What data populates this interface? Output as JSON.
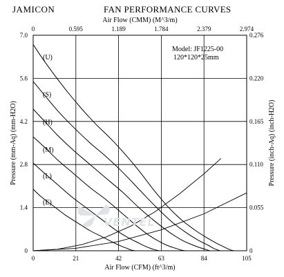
{
  "header": {
    "brand": "JAMICON",
    "title": "FAN PERFORMANCE CURVES"
  },
  "model": {
    "line1": "Model:  JF1225-00",
    "line2": "120*120*25mm"
  },
  "watermark": "VENTEL",
  "chart_data": {
    "type": "line",
    "xlabel": "Air Flow (CFM) (ft^3/m)",
    "x2label": "Air Flow (CMM) (M^3/m)",
    "ylabel": "Pressure (mm-Aq) (mm-H2O)",
    "y2label": "Pressure (inch-Aq) (inch-H2O)",
    "xlim": [
      0,
      105
    ],
    "ylim": [
      0,
      7.0
    ],
    "x_ticks": [
      "0",
      "21",
      "42",
      "63",
      "84",
      "105"
    ],
    "x2_ticks": [
      "0",
      "0.595",
      "1.189",
      "1.784",
      "2.379",
      "2.974"
    ],
    "y_ticks": [
      "0",
      "1.4",
      "2.8",
      "4.2",
      "5.6",
      "7.0"
    ],
    "y2_ticks": [
      "0",
      "0.055",
      "0.110",
      "0.165",
      "0.220",
      "0.276"
    ],
    "grid": true,
    "legend": "none",
    "obstruction_curves": [
      {
        "x": [
          0,
          12,
          24,
          36,
          48,
          60,
          72,
          84,
          92.4
        ],
        "y": [
          0,
          0.05,
          0.2,
          0.45,
          0.8,
          1.27,
          1.85,
          2.5,
          3.0
        ]
      },
      {
        "x": [
          0,
          21,
          42,
          63,
          84,
          105
        ],
        "y": [
          0,
          0.08,
          0.3,
          0.68,
          1.2,
          1.88
        ]
      }
    ],
    "series": [
      {
        "name": "(U)",
        "x": [
          0,
          4,
          10,
          17,
          24,
          31,
          38,
          45,
          52,
          59,
          66,
          73,
          80,
          86,
          90,
          94,
          97,
          99
        ],
        "y": [
          6.7,
          6.3,
          5.75,
          5.15,
          4.6,
          4.1,
          3.65,
          3.15,
          2.6,
          2.0,
          1.45,
          1.0,
          0.65,
          0.4,
          0.25,
          0.12,
          0.03,
          0
        ]
      },
      {
        "name": "(S)",
        "x": [
          0,
          5,
          12,
          20,
          28,
          36,
          44,
          52,
          60,
          68,
          75,
          81,
          86,
          89,
          92
        ],
        "y": [
          5.5,
          5.1,
          4.55,
          4.0,
          3.5,
          3.05,
          2.55,
          2.0,
          1.45,
          0.95,
          0.6,
          0.35,
          0.18,
          0.07,
          0
        ]
      },
      {
        "name": "(H)",
        "x": [
          0,
          5,
          12,
          20,
          28,
          36,
          44,
          52,
          60,
          67,
          73,
          78,
          82,
          85,
          87
        ],
        "y": [
          4.6,
          4.25,
          3.75,
          3.25,
          2.8,
          2.35,
          1.9,
          1.4,
          0.95,
          0.6,
          0.35,
          0.2,
          0.1,
          0.04,
          0
        ]
      },
      {
        "name": "(M)",
        "x": [
          0,
          5,
          12,
          20,
          28,
          36,
          44,
          51,
          57,
          62,
          66,
          70,
          73,
          75
        ],
        "y": [
          3.7,
          3.4,
          2.95,
          2.5,
          2.05,
          1.65,
          1.2,
          0.8,
          0.5,
          0.3,
          0.17,
          0.08,
          0.02,
          0
        ]
      },
      {
        "name": "(L)",
        "x": [
          0,
          5,
          12,
          19,
          26,
          33,
          40,
          46,
          51,
          55,
          58,
          60,
          62
        ],
        "y": [
          2.85,
          2.55,
          2.15,
          1.75,
          1.4,
          1.05,
          0.7,
          0.45,
          0.28,
          0.15,
          0.07,
          0.03,
          0
        ]
      },
      {
        "name": "(E)",
        "x": [
          0,
          4,
          10,
          16,
          22,
          28,
          34,
          39,
          43,
          46,
          48,
          50
        ],
        "y": [
          2.0,
          1.75,
          1.45,
          1.15,
          0.9,
          0.65,
          0.45,
          0.28,
          0.16,
          0.08,
          0.03,
          0
        ]
      }
    ]
  }
}
